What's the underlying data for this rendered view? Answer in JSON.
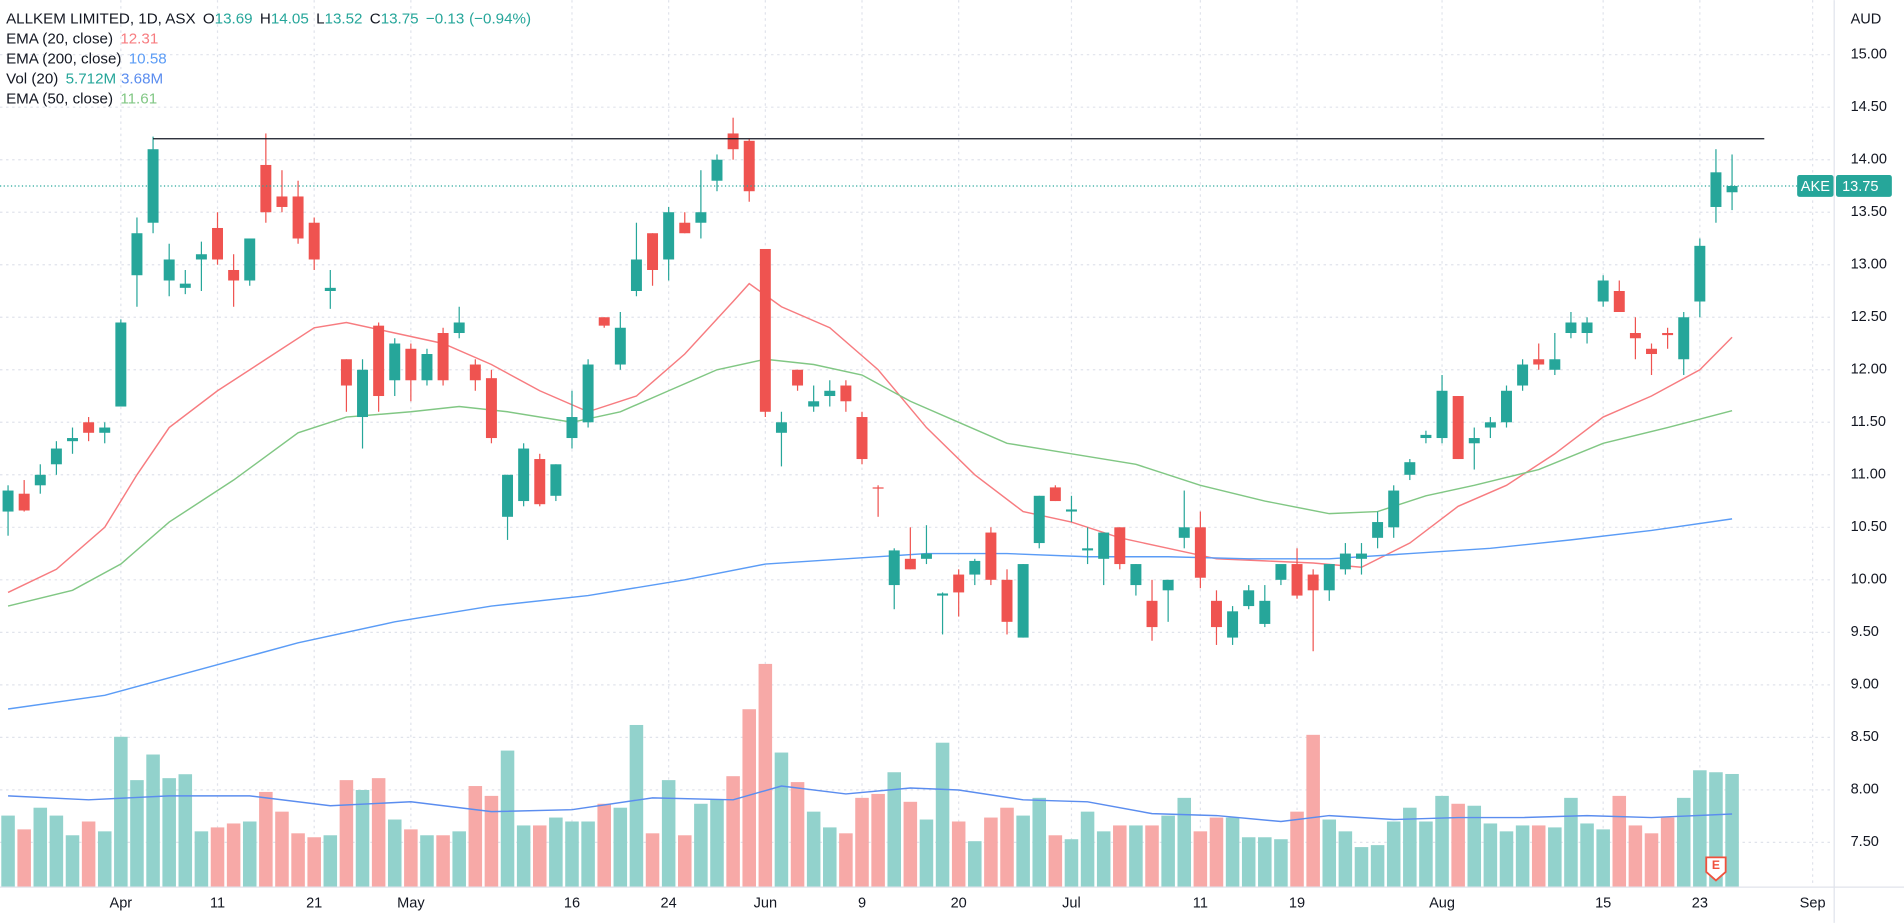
{
  "chart_data": {
    "type": "candlestick",
    "title": "ALLKEM LIMITED, 1D, ASX",
    "quote_labels": [
      "O",
      "H",
      "L",
      "C"
    ],
    "change": {
      "value": -0.13,
      "label": "−0.13"
    },
    "change_pct": {
      "value": -0.94,
      "label": "(−0.94%)"
    },
    "currency": "AUD",
    "symbol": "AKE",
    "open": [
      10.65,
      10.82,
      10.9,
      11.1,
      11.32,
      11.5,
      11.4,
      11.65,
      12.9,
      13.4,
      12.85,
      12.78,
      13.05,
      13.35,
      12.95,
      12.85,
      13.95,
      13.65,
      13.65,
      13.4,
      12.75,
      12.1,
      11.55,
      12.42,
      11.9,
      12.2,
      11.9,
      12.35,
      12.35,
      12.05,
      11.92,
      10.6,
      10.75,
      11.15,
      10.8,
      11.35,
      11.5,
      12.5,
      12.05,
      12.75,
      13.3,
      13.05,
      13.4,
      13.4,
      13.8,
      14.25,
      14.18,
      13.15,
      11.4,
      12.0,
      11.65,
      11.75,
      11.85,
      11.55,
      10.88,
      9.95,
      10.2,
      10.2,
      9.85,
      10.05,
      10.05,
      10.45,
      10.0,
      9.45,
      10.35,
      10.88,
      10.65,
      10.28,
      10.2,
      10.5,
      9.95,
      9.8,
      9.9,
      10.4,
      10.5,
      9.8,
      9.45,
      9.75,
      9.58,
      10.0,
      10.15,
      10.05,
      9.9,
      10.1,
      10.2,
      10.4,
      10.5,
      11.0,
      11.35,
      11.35,
      11.75,
      11.3,
      11.45,
      11.5,
      11.85,
      12.1,
      12.0,
      12.35,
      12.35,
      12.65,
      12.75,
      12.35,
      12.2,
      12.35,
      12.1,
      12.65,
      13.55,
      13.69
    ],
    "high": [
      10.9,
      10.95,
      11.1,
      11.32,
      11.45,
      11.55,
      11.5,
      12.48,
      13.45,
      14.22,
      13.2,
      12.95,
      13.22,
      13.5,
      13.1,
      13.25,
      14.25,
      13.9,
      13.8,
      13.45,
      12.95,
      12.1,
      12.1,
      12.45,
      12.3,
      12.25,
      12.2,
      12.4,
      12.6,
      12.1,
      12.0,
      11.0,
      11.3,
      11.2,
      11.1,
      11.8,
      12.1,
      12.5,
      12.55,
      13.4,
      13.3,
      13.55,
      13.5,
      13.9,
      14.05,
      14.4,
      14.2,
      13.15,
      11.6,
      12.0,
      11.85,
      11.9,
      11.9,
      11.6,
      10.9,
      10.3,
      10.5,
      10.52,
      9.88,
      10.1,
      10.2,
      10.5,
      10.1,
      10.15,
      10.8,
      10.9,
      10.8,
      10.5,
      10.45,
      10.5,
      10.15,
      10.0,
      10.0,
      10.85,
      10.65,
      9.9,
      9.75,
      9.95,
      9.95,
      10.1,
      10.3,
      10.1,
      10.15,
      10.35,
      10.35,
      10.65,
      10.9,
      11.15,
      11.42,
      11.95,
      11.75,
      11.45,
      11.55,
      11.85,
      12.1,
      12.25,
      12.35,
      12.55,
      12.5,
      12.9,
      12.85,
      12.5,
      12.25,
      12.4,
      12.55,
      13.25,
      14.1,
      14.05
    ],
    "low": [
      10.42,
      10.65,
      10.82,
      11.0,
      11.2,
      11.32,
      11.3,
      11.65,
      12.6,
      13.3,
      12.7,
      12.72,
      12.75,
      13.0,
      12.6,
      12.8,
      13.4,
      13.5,
      13.2,
      12.95,
      12.58,
      11.6,
      11.25,
      11.6,
      11.75,
      11.7,
      11.85,
      11.85,
      12.3,
      11.8,
      11.3,
      10.38,
      10.7,
      10.7,
      10.75,
      11.25,
      11.45,
      12.4,
      12.0,
      12.7,
      12.8,
      12.85,
      13.3,
      13.25,
      13.7,
      14.0,
      13.6,
      11.55,
      11.08,
      11.8,
      11.6,
      11.65,
      11.6,
      11.1,
      10.6,
      9.72,
      10.1,
      10.15,
      9.48,
      9.65,
      9.95,
      9.95,
      9.48,
      9.45,
      10.3,
      10.75,
      10.55,
      10.15,
      9.95,
      10.1,
      9.85,
      9.42,
      9.6,
      10.3,
      9.92,
      9.38,
      9.38,
      9.72,
      9.55,
      9.95,
      9.82,
      9.32,
      9.8,
      10.05,
      10.05,
      10.3,
      10.4,
      10.95,
      11.3,
      11.3,
      11.15,
      11.05,
      11.35,
      11.45,
      11.8,
      12.0,
      11.95,
      12.3,
      12.25,
      12.6,
      12.55,
      12.1,
      11.95,
      12.2,
      11.95,
      12.5,
      13.4,
      13.52
    ],
    "close": [
      10.85,
      10.66,
      11.0,
      11.25,
      11.35,
      11.4,
      11.45,
      12.45,
      13.3,
      14.1,
      13.05,
      12.82,
      13.1,
      13.05,
      12.85,
      13.25,
      13.5,
      13.55,
      13.25,
      13.05,
      12.78,
      11.85,
      12.0,
      11.75,
      12.25,
      11.9,
      12.15,
      11.9,
      12.45,
      11.9,
      11.35,
      11.0,
      11.25,
      10.72,
      11.1,
      11.55,
      12.05,
      12.42,
      12.4,
      13.05,
      12.95,
      13.5,
      13.3,
      13.5,
      14.0,
      14.1,
      13.7,
      11.6,
      11.5,
      11.85,
      11.7,
      11.8,
      11.7,
      11.15,
      10.87,
      10.28,
      10.1,
      10.25,
      9.87,
      9.88,
      10.18,
      10.0,
      9.6,
      10.15,
      10.8,
      10.75,
      10.67,
      10.3,
      10.45,
      10.15,
      10.15,
      9.55,
      10.0,
      10.5,
      10.02,
      9.55,
      9.7,
      9.9,
      9.8,
      10.15,
      9.85,
      9.9,
      10.15,
      10.25,
      10.25,
      10.55,
      10.85,
      11.12,
      11.38,
      11.8,
      11.15,
      11.35,
      11.5,
      11.8,
      12.05,
      12.05,
      12.1,
      12.45,
      12.45,
      12.85,
      12.55,
      12.3,
      12.15,
      12.33,
      12.5,
      13.18,
      13.88,
      13.75
    ],
    "volume": [
      3.6,
      2.9,
      4.0,
      3.6,
      2.6,
      3.3,
      2.8,
      7.6,
      5.4,
      6.7,
      5.5,
      5.7,
      2.8,
      3.0,
      3.2,
      3.3,
      4.8,
      3.8,
      2.7,
      2.5,
      2.6,
      5.4,
      4.9,
      5.5,
      3.4,
      2.9,
      2.6,
      2.6,
      2.8,
      5.1,
      4.6,
      6.9,
      3.1,
      3.1,
      3.5,
      3.3,
      3.3,
      4.2,
      4.0,
      8.2,
      2.7,
      5.4,
      2.6,
      4.2,
      4.4,
      5.6,
      9.0,
      11.3,
      6.8,
      5.3,
      3.8,
      3.0,
      2.7,
      4.5,
      4.7,
      5.8,
      4.3,
      3.4,
      7.3,
      3.3,
      2.3,
      3.5,
      4.0,
      3.6,
      4.5,
      2.6,
      2.4,
      3.8,
      2.8,
      3.1,
      3.1,
      3.1,
      3.6,
      4.5,
      2.8,
      3.5,
      3.5,
      2.5,
      2.5,
      2.4,
      3.8,
      7.7,
      3.4,
      2.8,
      2.0,
      2.1,
      3.3,
      4.0,
      3.3,
      4.6,
      4.2,
      4.1,
      3.2,
      2.8,
      3.1,
      3.1,
      3.0,
      4.5,
      3.2,
      2.9,
      4.6,
      3.1,
      2.7,
      3.5,
      4.5,
      5.9,
      5.8,
      5.712
    ],
    "volume_last_label": "5.712M",
    "up_color": "#26a69a",
    "down_color": "#ef5350",
    "volume_up_color": "#92d2cc",
    "volume_down_color": "#f7a9a7",
    "xlim": [
      -0.5,
      113.3
    ],
    "ylim": [
      7.08,
      15.52
    ],
    "volume_ylim": [
      0,
      45
    ],
    "xticks": [
      {
        "value": 7,
        "label": "Apr"
      },
      {
        "value": 13,
        "label": "11"
      },
      {
        "value": 19,
        "label": "21"
      },
      {
        "value": 25,
        "label": "May"
      },
      {
        "value": 35,
        "label": "16"
      },
      {
        "value": 41,
        "label": "24"
      },
      {
        "value": 47,
        "label": "Jun"
      },
      {
        "value": 53,
        "label": "9"
      },
      {
        "value": 59,
        "label": "20"
      },
      {
        "value": 66,
        "label": "Jul"
      },
      {
        "value": 74,
        "label": "11"
      },
      {
        "value": 80,
        "label": "19"
      },
      {
        "value": 89,
        "label": "Aug"
      },
      {
        "value": 99,
        "label": "15"
      },
      {
        "value": 105,
        "label": "23"
      },
      {
        "value": 112,
        "label": "Sep"
      }
    ],
    "yticks": [
      {
        "value": 7.5,
        "label": "7.50"
      },
      {
        "value": 8,
        "label": "8.00"
      },
      {
        "value": 8.5,
        "label": "8.50"
      },
      {
        "value": 9,
        "label": "9.00"
      },
      {
        "value": 9.5,
        "label": "9.50"
      },
      {
        "value": 10,
        "label": "10.00"
      },
      {
        "value": 10.5,
        "label": "10.50"
      },
      {
        "value": 11,
        "label": "11.00"
      },
      {
        "value": 11.5,
        "label": "11.50"
      },
      {
        "value": 12,
        "label": "12.00"
      },
      {
        "value": 12.5,
        "label": "12.50"
      },
      {
        "value": 13,
        "label": "13.00"
      },
      {
        "value": 13.5,
        "label": "13.50"
      },
      {
        "value": 14,
        "label": "14.00"
      },
      {
        "value": 14.5,
        "label": "14.50"
      },
      {
        "value": 15,
        "label": "15.00"
      }
    ],
    "grid": true,
    "indicators": [
      {
        "name": "EMA (20, close)",
        "color": "#f77c80",
        "x": [
          0,
          3,
          6,
          8,
          10,
          13,
          16,
          19,
          21,
          24,
          27,
          30,
          33,
          36,
          39,
          42,
          45,
          46,
          48,
          51,
          54,
          57,
          60,
          63,
          66,
          69,
          72,
          75,
          78,
          81,
          84,
          87,
          90,
          93,
          96,
          99,
          102,
          105,
          107
        ],
        "values": [
          9.88,
          10.1,
          10.5,
          11.0,
          11.45,
          11.8,
          12.1,
          12.4,
          12.45,
          12.35,
          12.25,
          12.05,
          11.8,
          11.6,
          11.75,
          12.15,
          12.65,
          12.82,
          12.6,
          12.4,
          12.0,
          11.45,
          11.0,
          10.65,
          10.55,
          10.4,
          10.3,
          10.2,
          10.18,
          10.16,
          10.12,
          10.35,
          10.7,
          10.9,
          11.2,
          11.55,
          11.75,
          12.0,
          12.31
        ]
      },
      {
        "name": "EMA (200, close)",
        "color": "#5b9cf6",
        "x": [
          0,
          6,
          12,
          18,
          24,
          30,
          36,
          42,
          47,
          52,
          57,
          62,
          67,
          72,
          77,
          82,
          87,
          92,
          97,
          102,
          107
        ],
        "values": [
          8.77,
          8.9,
          9.15,
          9.4,
          9.6,
          9.75,
          9.85,
          10.0,
          10.15,
          10.2,
          10.25,
          10.25,
          10.22,
          10.22,
          10.2,
          10.2,
          10.25,
          10.3,
          10.38,
          10.47,
          10.58
        ]
      },
      {
        "name": "EMA (50, close)",
        "color": "#81c784",
        "x": [
          0,
          4,
          7,
          10,
          14,
          18,
          21,
          25,
          28,
          31,
          35,
          38,
          41,
          44,
          47,
          50,
          53,
          56,
          59,
          62,
          66,
          70,
          74,
          78,
          82,
          85,
          88,
          91,
          95,
          99,
          103,
          107
        ],
        "values": [
          9.75,
          9.9,
          10.15,
          10.55,
          10.95,
          11.4,
          11.55,
          11.6,
          11.65,
          11.6,
          11.5,
          11.6,
          11.8,
          12.0,
          12.1,
          12.05,
          11.95,
          11.7,
          11.5,
          11.3,
          11.2,
          11.1,
          10.9,
          10.75,
          10.63,
          10.65,
          10.8,
          10.9,
          11.05,
          11.3,
          11.45,
          11.61
        ]
      }
    ],
    "volume_ma": {
      "name": "Vol (20)",
      "color": "#5b8def",
      "last_label": "3.68M",
      "x": [
        0,
        5,
        10,
        15,
        20,
        25,
        30,
        35,
        40,
        45,
        48,
        52,
        56,
        59,
        63,
        67,
        71,
        75,
        79,
        82,
        86,
        90,
        94,
        98,
        102,
        107
      ],
      "values": [
        4.6,
        4.4,
        4.6,
        4.6,
        4.1,
        4.3,
        3.8,
        3.9,
        4.5,
        4.4,
        5.1,
        4.7,
        5.0,
        4.9,
        4.4,
        4.3,
        3.7,
        3.6,
        3.3,
        3.6,
        3.4,
        3.5,
        3.5,
        3.6,
        3.5,
        3.68
      ]
    },
    "resistance": {
      "value": 14.2,
      "x": [
        9,
        109
      ],
      "color": "#131722"
    },
    "earnings_marker": {
      "label": "E",
      "x": 106
    }
  }
}
